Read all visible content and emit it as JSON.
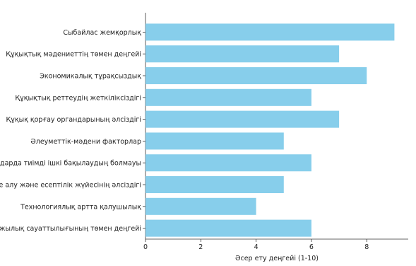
{
  "chart_data": {
    "type": "bar",
    "orientation": "horizontal",
    "title": "",
    "xlabel": "Әсер ету деңгейі (1-10)",
    "ylabel": "",
    "xlim": [
      0,
      9.5
    ],
    "xticks": [
      0,
      2,
      4,
      6,
      8
    ],
    "grid": false,
    "bar_color": "#87ceeb",
    "categories": [
      "Сыбайлас жемқорлық",
      "Құқықтық мәдениеттің төмен деңгейі",
      "Экономикалық тұрақсыздық",
      "Құқықтық реттеудің жеткіліксіздігі",
      "Құқық қорғау органдарының әлсіздігі",
      "Әлеуметтік-мәдени факторлар",
      "Ұйымдарда тиімді ішкі бақылаудың болмауы",
      "Есепке алу және есептілік жүйесінің әлсіздігі",
      "Технологиялық артта қалушылық",
      "Халықтың қаржылық сауаттылығының төмен деңгейі"
    ],
    "values": [
      9,
      7,
      8,
      6,
      7,
      5,
      6,
      5,
      4,
      6
    ]
  }
}
